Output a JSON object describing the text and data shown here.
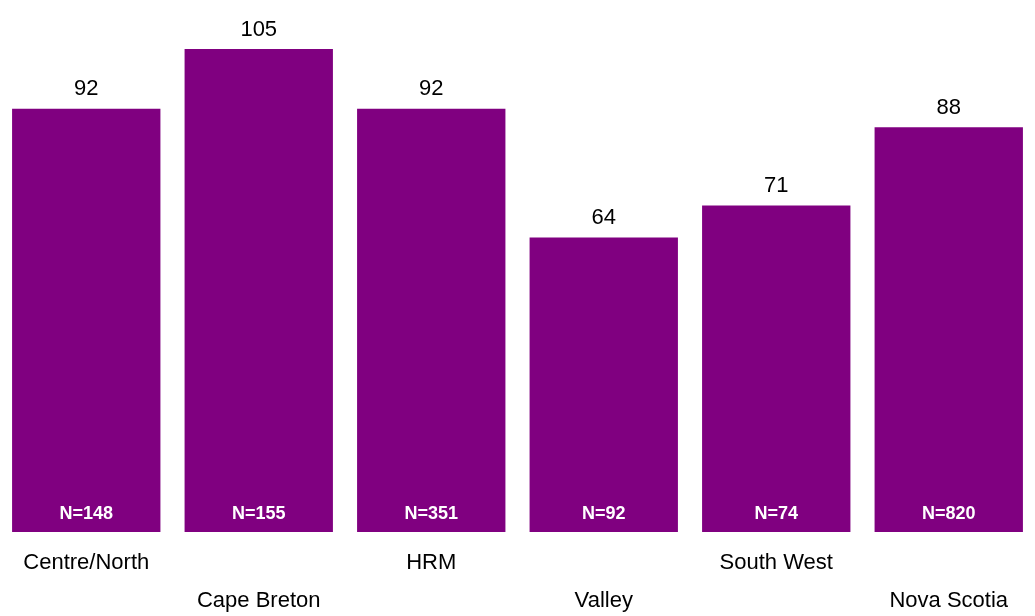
{
  "chart_data": {
    "type": "bar",
    "categories": [
      "Centre/North",
      "Cape Breton",
      "HRM",
      "Valley",
      "South West",
      "Nova Scotia"
    ],
    "values": [
      92,
      105,
      92,
      64,
      71,
      88
    ],
    "color": "#800080",
    "data_labels": true,
    "annotations": [
      "N=148",
      "N=155",
      "N=351",
      "N=92",
      "N=74",
      "N=820"
    ]
  }
}
